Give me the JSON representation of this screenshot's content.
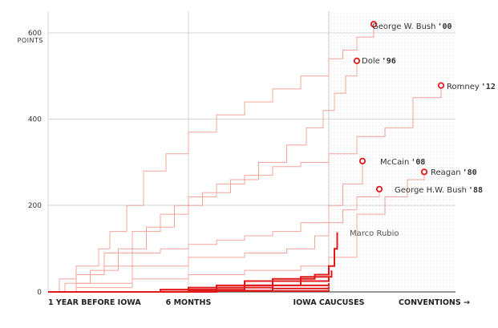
{
  "chart_data": {
    "type": "line",
    "title": "",
    "ylabel": "POINTS",
    "ylim": [
      0,
      650
    ],
    "y_ticks": [
      0,
      200,
      400,
      600
    ],
    "x_labels": [
      "1 YEAR BEFORE IOWA",
      "6 MONTHS",
      "IOWA CAUCUSES",
      "CONVENTIONS →"
    ],
    "colors": {
      "winner": "#f2a49a",
      "current": "#e0191b",
      "marker": "#e0191b",
      "shade": "#e8e8e8",
      "grid": "#d6d6d6"
    },
    "winners": [
      {
        "name": "George W. Bush",
        "year": "'00",
        "points": [
          [
            0,
            0
          ],
          [
            0.04,
            30
          ],
          [
            0.1,
            60
          ],
          [
            0.18,
            100
          ],
          [
            0.22,
            140
          ],
          [
            0.28,
            200
          ],
          [
            0.34,
            280
          ],
          [
            0.42,
            320
          ],
          [
            0.5,
            370
          ],
          [
            0.6,
            410
          ],
          [
            0.7,
            440
          ],
          [
            0.8,
            470
          ],
          [
            0.9,
            500
          ],
          [
            1.0,
            540
          ],
          [
            1.05,
            560
          ],
          [
            1.1,
            590
          ],
          [
            1.16,
            620
          ]
        ],
        "label_value": 620
      },
      {
        "name": "Dole",
        "year": "'96",
        "points": [
          [
            0,
            0
          ],
          [
            0.06,
            20
          ],
          [
            0.15,
            50
          ],
          [
            0.25,
            100
          ],
          [
            0.35,
            150
          ],
          [
            0.45,
            200
          ],
          [
            0.55,
            230
          ],
          [
            0.65,
            260
          ],
          [
            0.75,
            300
          ],
          [
            0.85,
            340
          ],
          [
            0.92,
            380
          ],
          [
            0.98,
            420
          ],
          [
            1.02,
            460
          ],
          [
            1.06,
            500
          ],
          [
            1.1,
            535
          ]
        ],
        "label_value": 535
      },
      {
        "name": "Romney",
        "year": "'12",
        "points": [
          [
            0,
            0
          ],
          [
            0.1,
            40
          ],
          [
            0.2,
            90
          ],
          [
            0.3,
            140
          ],
          [
            0.4,
            180
          ],
          [
            0.5,
            220
          ],
          [
            0.6,
            250
          ],
          [
            0.7,
            270
          ],
          [
            0.8,
            290
          ],
          [
            0.9,
            300
          ],
          [
            1.0,
            320
          ],
          [
            1.1,
            360
          ],
          [
            1.2,
            380
          ],
          [
            1.3,
            450
          ],
          [
            1.4,
            478
          ]
        ],
        "label_value": 478
      },
      {
        "name": "McCain",
        "year": "'08",
        "points": [
          [
            0,
            0
          ],
          [
            0.1,
            40
          ],
          [
            0.2,
            60
          ],
          [
            0.3,
            90
          ],
          [
            0.4,
            100
          ],
          [
            0.5,
            110
          ],
          [
            0.6,
            120
          ],
          [
            0.7,
            130
          ],
          [
            0.8,
            140
          ],
          [
            0.9,
            160
          ],
          [
            1.0,
            200
          ],
          [
            1.05,
            250
          ],
          [
            1.12,
            303
          ]
        ],
        "label_value": 303
      },
      {
        "name": "Reagan",
        "year": "'80",
        "points": [
          [
            0,
            0
          ],
          [
            0.1,
            10
          ],
          [
            0.3,
            30
          ],
          [
            0.5,
            40
          ],
          [
            0.7,
            50
          ],
          [
            0.9,
            60
          ],
          [
            1.0,
            80
          ],
          [
            1.1,
            180
          ],
          [
            1.2,
            220
          ],
          [
            1.28,
            260
          ],
          [
            1.34,
            278
          ]
        ],
        "label_value": 278
      },
      {
        "name": "George H.W. Bush",
        "year": "'88",
        "points": [
          [
            0,
            0
          ],
          [
            0.1,
            20
          ],
          [
            0.3,
            60
          ],
          [
            0.5,
            80
          ],
          [
            0.7,
            90
          ],
          [
            0.85,
            100
          ],
          [
            0.95,
            130
          ],
          [
            1.0,
            160
          ],
          [
            1.05,
            190
          ],
          [
            1.1,
            220
          ],
          [
            1.18,
            238
          ]
        ],
        "label_value": 238
      }
    ],
    "current": [
      {
        "name": "Marco Rubio",
        "points": [
          [
            0.2,
            0
          ],
          [
            0.4,
            5
          ],
          [
            0.6,
            15
          ],
          [
            0.8,
            30
          ],
          [
            0.95,
            40
          ],
          [
            1.0,
            60
          ],
          [
            1.02,
            100
          ],
          [
            1.03,
            138
          ]
        ],
        "label_value": 138
      },
      {
        "points": [
          [
            0.3,
            0
          ],
          [
            0.5,
            10
          ],
          [
            0.7,
            25
          ],
          [
            0.9,
            35
          ],
          [
            1.01,
            50
          ]
        ]
      },
      {
        "points": [
          [
            0.2,
            0
          ],
          [
            0.5,
            5
          ],
          [
            0.7,
            15
          ],
          [
            0.9,
            25
          ],
          [
            1.0,
            35
          ]
        ]
      },
      {
        "points": [
          [
            0.1,
            0
          ],
          [
            0.4,
            5
          ],
          [
            0.6,
            10
          ],
          [
            0.8,
            15
          ],
          [
            1.0,
            20
          ]
        ]
      },
      {
        "points": [
          [
            0.2,
            0
          ],
          [
            0.6,
            3
          ],
          [
            0.8,
            8
          ],
          [
            1.0,
            12
          ]
        ]
      },
      {
        "points": [
          [
            0.0,
            0
          ],
          [
            0.5,
            2
          ],
          [
            1.0,
            5
          ]
        ]
      }
    ]
  }
}
